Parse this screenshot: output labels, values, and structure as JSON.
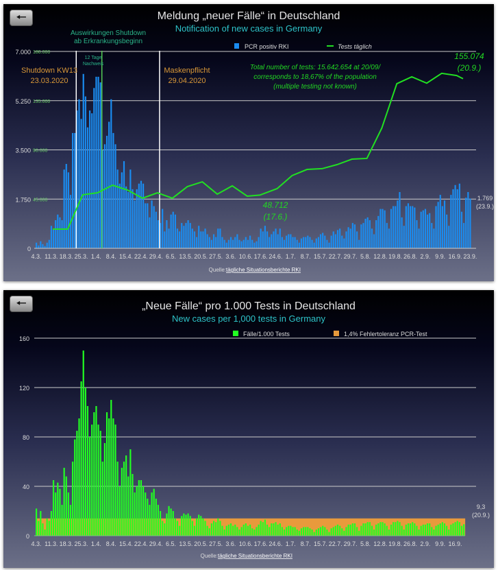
{
  "chart_data": [
    {
      "type": "bar",
      "title": "Meldung „neuer Fälle“ in Deutschland",
      "subtitle": "Notification of new cases in Germany",
      "legend": [
        {
          "name": "PCR positiv RKI",
          "color": "#1a8cf0"
        },
        {
          "name": "Tests täglich",
          "color": "#22e022"
        }
      ],
      "start_date": "4.3.",
      "x_ticks": [
        "4.3.",
        "11.3.",
        "18.3.",
        "25.3.",
        "1.4.",
        "8.4.",
        "15.4.",
        "22.4.",
        "29.4.",
        "6.5.",
        "13.5.",
        "20.5.",
        "27.5.",
        "3.6.",
        "10.6.",
        "17.6.",
        "24.6.",
        "1.7.",
        "8.7.",
        "15.7.",
        "22.7.",
        "29.7.",
        "5.8.",
        "12.8.",
        "19.8.",
        "26.8.",
        "2.9.",
        "9.9.",
        "16.9.",
        "23.9."
      ],
      "y_ticks": [
        "0",
        "1.750",
        "3.500",
        "5.250",
        "7.000"
      ],
      "ylim": [
        0,
        7000
      ],
      "y2_ticks": [
        "0",
        "45.000",
        "90.000",
        "135.000",
        "180.000"
      ],
      "y2lim": [
        0,
        180000
      ],
      "series": [
        {
          "name": "PCR positiv RKI",
          "type": "bar",
          "values": [
            200,
            100,
            250,
            150,
            80,
            200,
            300,
            800,
            700,
            1000,
            1200,
            1100,
            1000,
            2800,
            3000,
            2700,
            1900,
            4100,
            4100,
            4900,
            5300,
            4600,
            6200,
            5400,
            4300,
            4900,
            4800,
            5700,
            6100,
            6100,
            5900,
            3500,
            3700,
            4000,
            4500,
            5300,
            4100,
            3700,
            2800,
            2300,
            2700,
            3100,
            2200,
            2000,
            2800,
            2100,
            1700,
            2100,
            2300,
            2400,
            2300,
            1600,
            1600,
            1100,
            1700,
            1500,
            1300,
            1000,
            900,
            1400,
            600,
            1000,
            700,
            1200,
            1300,
            1200,
            700,
            600,
            900,
            800,
            900,
            1000,
            900,
            700,
            600,
            400,
            800,
            600,
            600,
            700,
            500,
            400,
            300,
            500,
            400,
            700,
            700,
            400,
            300,
            200,
            300,
            400,
            300,
            400,
            500,
            300,
            250,
            300,
            400,
            300,
            450,
            300,
            200,
            250,
            400,
            700,
            600,
            800,
            600,
            400,
            500,
            600,
            700,
            500,
            700,
            400,
            300,
            450,
            500,
            500,
            400,
            400,
            300,
            200,
            350,
            400,
            400,
            450,
            400,
            300,
            200,
            350,
            400,
            500,
            550,
            450,
            300,
            200,
            450,
            600,
            500,
            650,
            700,
            450,
            350,
            600,
            750,
            700,
            900,
            850,
            600,
            300,
            850,
            900,
            1050,
            1100,
            1000,
            700,
            500,
            1000,
            1150,
            1400,
            1400,
            1350,
            900,
            700,
            1400,
            1500,
            1500,
            1700,
            2000,
            1100,
            800,
            1500,
            1600,
            1500,
            1500,
            1450,
            1000,
            700,
            1300,
            1350,
            1400,
            1200,
            1250,
            900,
            700,
            1500,
            1650,
            1900,
            1500,
            1700,
            1200,
            800,
            1900,
            2100,
            2250,
            2100,
            2300,
            1300,
            900,
            1800,
            2000,
            1769
          ]
        },
        {
          "name": "Tests täglich",
          "type": "line",
          "axis": "y2",
          "dates": [
            "12.3.",
            "19.3.",
            "26.3.",
            "2.4.",
            "9.4.",
            "16.4.",
            "23.4.",
            "30.4.",
            "7.5.",
            "14.5.",
            "21.5.",
            "28.5.",
            "4.6.",
            "11.6.",
            "17.6.",
            "25.6.",
            "2.7.",
            "9.7.",
            "16.7.",
            "23.7.",
            "30.7.",
            "6.8.",
            "13.8.",
            "20.8.",
            "27.8.",
            "3.9.",
            "10.9.",
            "17.9.",
            "20.9."
          ],
          "values": [
            17600,
            17600,
            48900,
            50800,
            57700,
            53300,
            45800,
            50800,
            45800,
            56400,
            60800,
            49500,
            57100,
            47700,
            48712,
            54600,
            66500,
            72100,
            72800,
            76500,
            81500,
            82200,
            110000,
            150500,
            156800,
            151000,
            160000,
            158000,
            155074
          ]
        }
      ],
      "annotations": {
        "shutdown_effect": [
          "Auswirkungen Shutdown",
          "ab Erkrankungsbeginn"
        ],
        "delay": [
          "12 Tage",
          "Nachweis"
        ],
        "shutdown": [
          "Shutdown KW13",
          "23.03.2020"
        ],
        "mask": [
          "Maskenpflicht",
          "29.04.2020"
        ],
        "total": [
          "Total number of tests:  15.642.654 at 20/09/",
          "corresponds to 18,67% of the population",
          "(multiple testing not known)"
        ],
        "max_label": [
          "155.074",
          "(20.9.)"
        ],
        "min_label": [
          "48.712",
          "(17.6.)"
        ],
        "last_label": [
          "1.769",
          "(23.9.)"
        ],
        "source_prefix": "Quelle: ",
        "source_link": "tägliche Situationsberichte RKI"
      }
    },
    {
      "type": "bar",
      "title": "„Neue Fälle“ pro 1.000 Tests in Deutschland",
      "subtitle": "New cases per 1,000 tests in Germany",
      "legend": [
        {
          "name": "Fälle/1.000 Tests",
          "color": "#22ff22"
        },
        {
          "name": "1,4% Fehlertoleranz PCR-Test",
          "color": "#e89a3c"
        }
      ],
      "start_date": "4.3.",
      "x_ticks": [
        "4.3.",
        "11.3.",
        "18.3.",
        "25.3.",
        "1.4.",
        "8.4.",
        "15.4.",
        "22.4.",
        "29.4.",
        "6.5.",
        "13.5.",
        "20.5.",
        "27.5.",
        "3.6.",
        "10.6.",
        "17.6.",
        "24.6.",
        "1.7.",
        "8.7.",
        "15.7.",
        "22.7.",
        "29.7.",
        "5.8.",
        "12.8.",
        "19.8.",
        "26.8.",
        "2.9.",
        "9.9.",
        "16.9."
      ],
      "y_ticks": [
        "0",
        "40",
        "80",
        "120",
        "160"
      ],
      "ylim": [
        0,
        160
      ],
      "tolerance_band": 14,
      "series": [
        {
          "name": "Fälle/1.000 Tests",
          "values": [
            22,
            12,
            20,
            10,
            5,
            14,
            12,
            20,
            45,
            35,
            43,
            38,
            25,
            55,
            48,
            35,
            25,
            60,
            78,
            85,
            95,
            125,
            150,
            120,
            105,
            80,
            90,
            100,
            105,
            90,
            85,
            60,
            75,
            100,
            95,
            110,
            95,
            90,
            60,
            40,
            55,
            60,
            65,
            48,
            70,
            50,
            35,
            40,
            45,
            45,
            40,
            35,
            30,
            25,
            35,
            38,
            30,
            25,
            20,
            12,
            10,
            18,
            24,
            22,
            20,
            14,
            12,
            8,
            16,
            18,
            17,
            18,
            16,
            12,
            8,
            14,
            17,
            16,
            14,
            12,
            8,
            6,
            10,
            12,
            11,
            14,
            12,
            8,
            5,
            8,
            9,
            10,
            8,
            9,
            7,
            5,
            7,
            9,
            10,
            8,
            9,
            6,
            5,
            7,
            9,
            12,
            11,
            13,
            9,
            7,
            10,
            10,
            11,
            9,
            10,
            7,
            5,
            7,
            8,
            8,
            7,
            7,
            5,
            4,
            6,
            7,
            7,
            7,
            6,
            5,
            3,
            5,
            6,
            7,
            8,
            7,
            5,
            3,
            6,
            7,
            8,
            9,
            8,
            6,
            4,
            7,
            9,
            9,
            10,
            10,
            7,
            4,
            8,
            10,
            10,
            11,
            11,
            8,
            5,
            9,
            10,
            11,
            11,
            10,
            8,
            5,
            9,
            11,
            11,
            12,
            11,
            8,
            5,
            9,
            10,
            10,
            11,
            10,
            8,
            5,
            8,
            9,
            9,
            10,
            10,
            7,
            5,
            8,
            9,
            10,
            11,
            10,
            8,
            5,
            9,
            10,
            11,
            12,
            11,
            8,
            9.3
          ]
        }
      ],
      "annotations": {
        "last_label": [
          "9,3",
          "(20.9.)"
        ],
        "source_prefix": "Quelle: ",
        "source_link": "tägliche Situationsberichte RKI"
      }
    }
  ]
}
